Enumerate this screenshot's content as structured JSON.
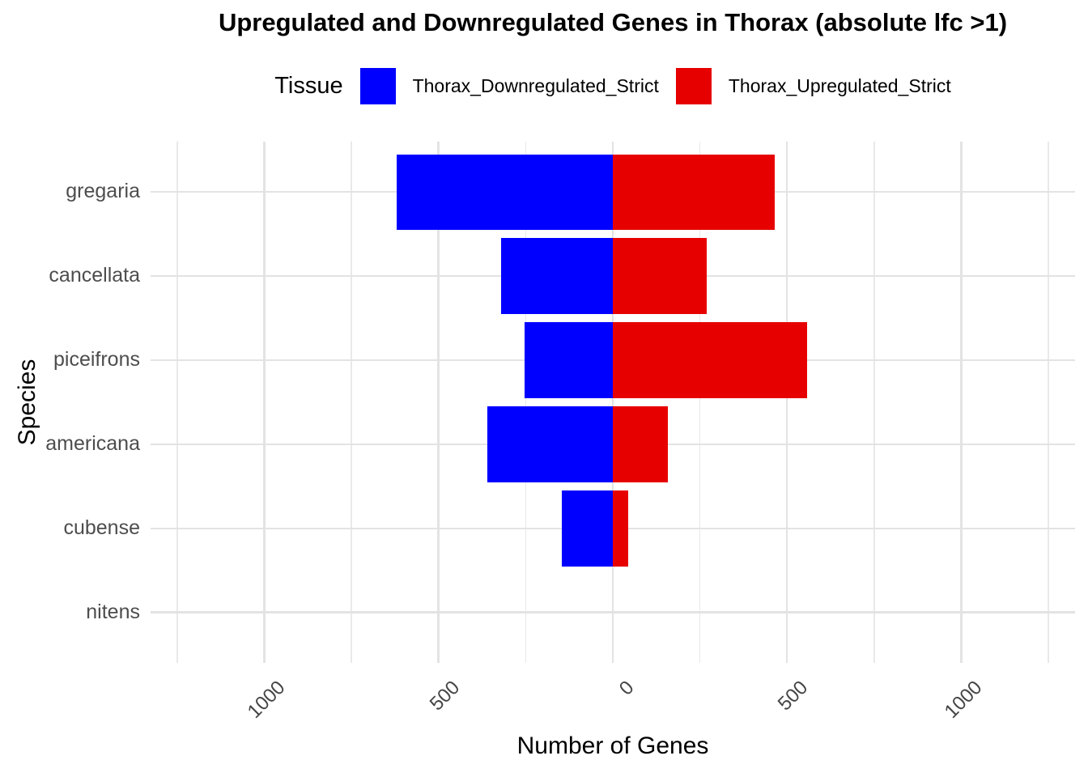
{
  "chart_data": {
    "type": "bar",
    "subtype": "diverging-horizontal",
    "title": "Upregulated and Downregulated Genes in Thorax (absolute lfc >1)",
    "xlabel": "Number of Genes",
    "ylabel": "Species",
    "legend_title": "Tissue",
    "legend_position": "top",
    "grid": "on",
    "categories": [
      "gregaria",
      "cancellata",
      "piceifrons",
      "americana",
      "cubense",
      "nitens"
    ],
    "series": [
      {
        "name": "Thorax_Downregulated_Strict",
        "color": "#0000ff",
        "direction": "negative",
        "values": [
          620,
          320,
          254,
          359,
          147,
          0
        ]
      },
      {
        "name": "Thorax_Upregulated_Strict",
        "color": "#e60000",
        "direction": "positive",
        "values": [
          465,
          270,
          558,
          157,
          45,
          0
        ]
      }
    ],
    "x_axis": {
      "range": [
        -1326,
        1326
      ],
      "major_ticks": [
        {
          "value": -1000,
          "label": "1000"
        },
        {
          "value": -500,
          "label": "500"
        },
        {
          "value": 0,
          "label": "0"
        },
        {
          "value": 500,
          "label": "500"
        },
        {
          "value": 1000,
          "label": "1000"
        }
      ],
      "minor_gridlines": [
        -1250,
        -750,
        -250,
        250,
        750,
        1250
      ],
      "tick_label_rotation_deg": 45
    }
  }
}
